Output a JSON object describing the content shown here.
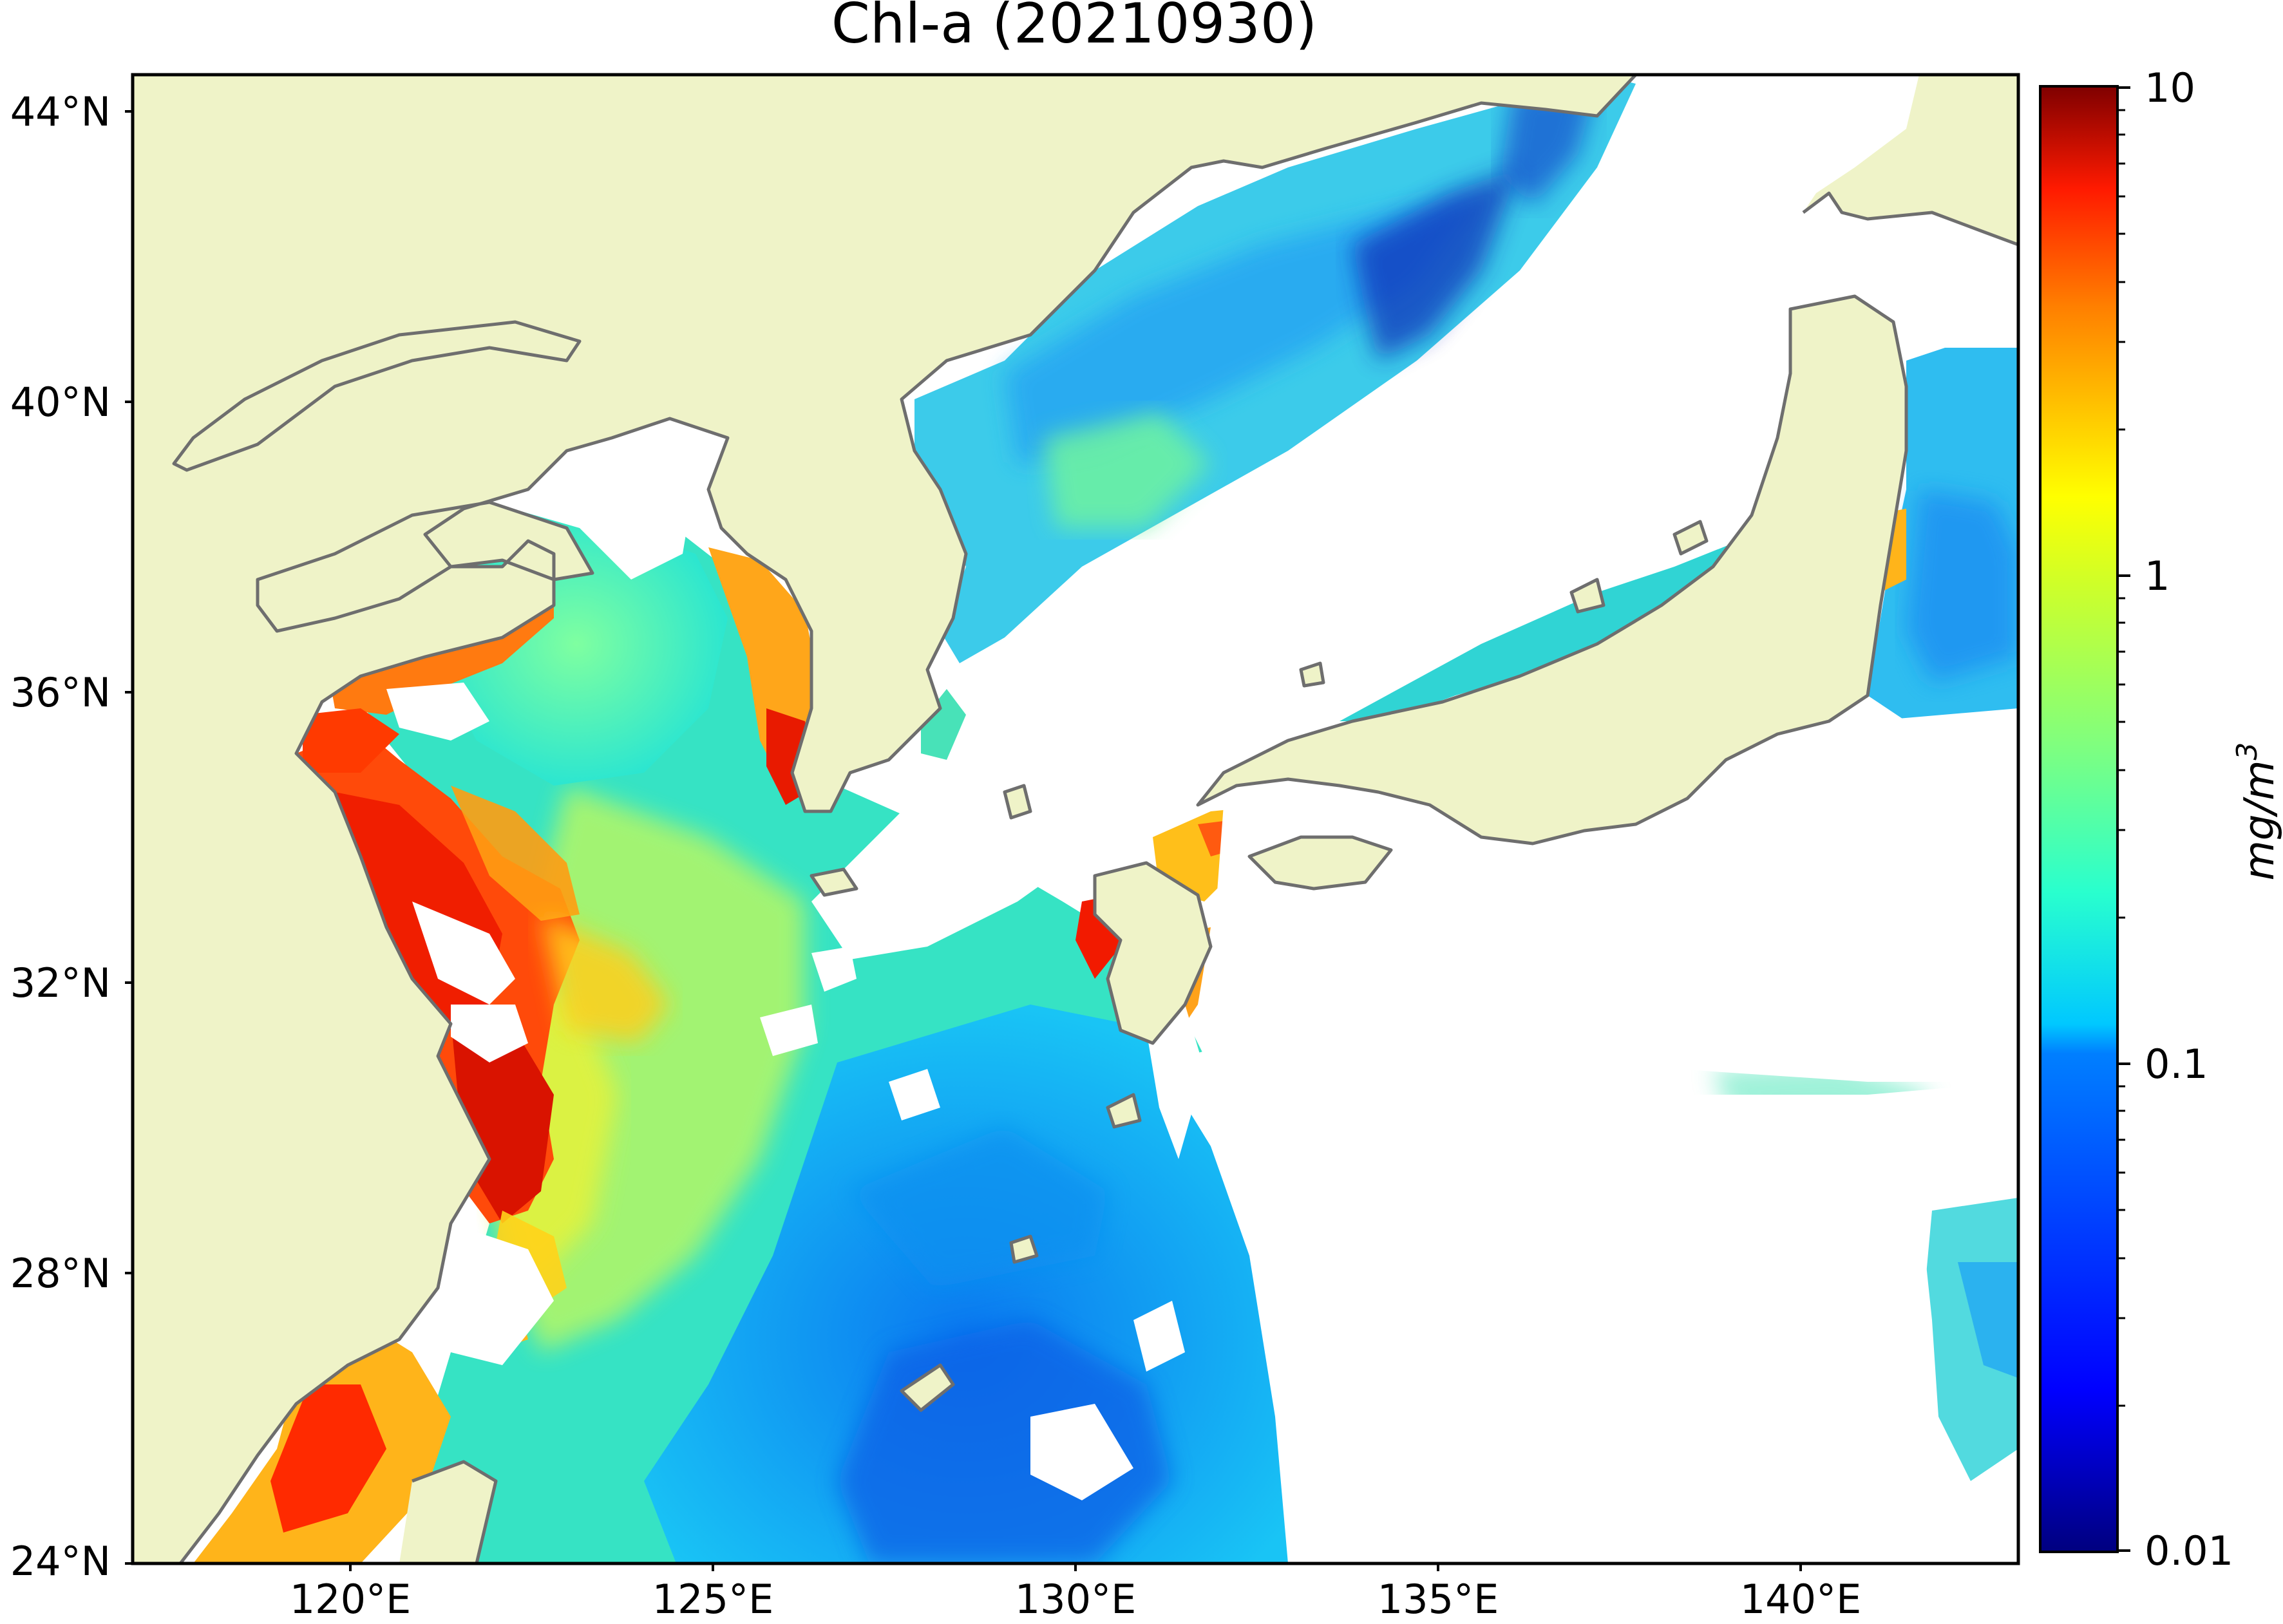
{
  "title": "Chl-a (20210930)",
  "map": {
    "lat_labels": [
      "44°N",
      "40°N",
      "36°N",
      "32°N",
      "28°N",
      "24°N"
    ],
    "lon_labels": [
      "120°E",
      "125°E",
      "130°E",
      "135°E",
      "140°E"
    ],
    "extent": {
      "lon": [
        117,
        143
      ],
      "lat": [
        24,
        44.5
      ]
    },
    "land_color": "#eff3c8",
    "nodata_color": "#ffffff",
    "coastline_color": "#6e6e6e"
  },
  "colorbar": {
    "tick_labels": [
      "10",
      "1",
      "0.1",
      "0.01"
    ],
    "unit": "mg/m",
    "unit_superscript": "3",
    "scale": "log",
    "range": [
      0.01,
      10
    ],
    "colormap": "jet",
    "colors": [
      "#00007f",
      "#0000ff",
      "#007fff",
      "#00ffff",
      "#7fff7f",
      "#ffff00",
      "#ff7f00",
      "#ff0000",
      "#7f0000"
    ]
  }
}
